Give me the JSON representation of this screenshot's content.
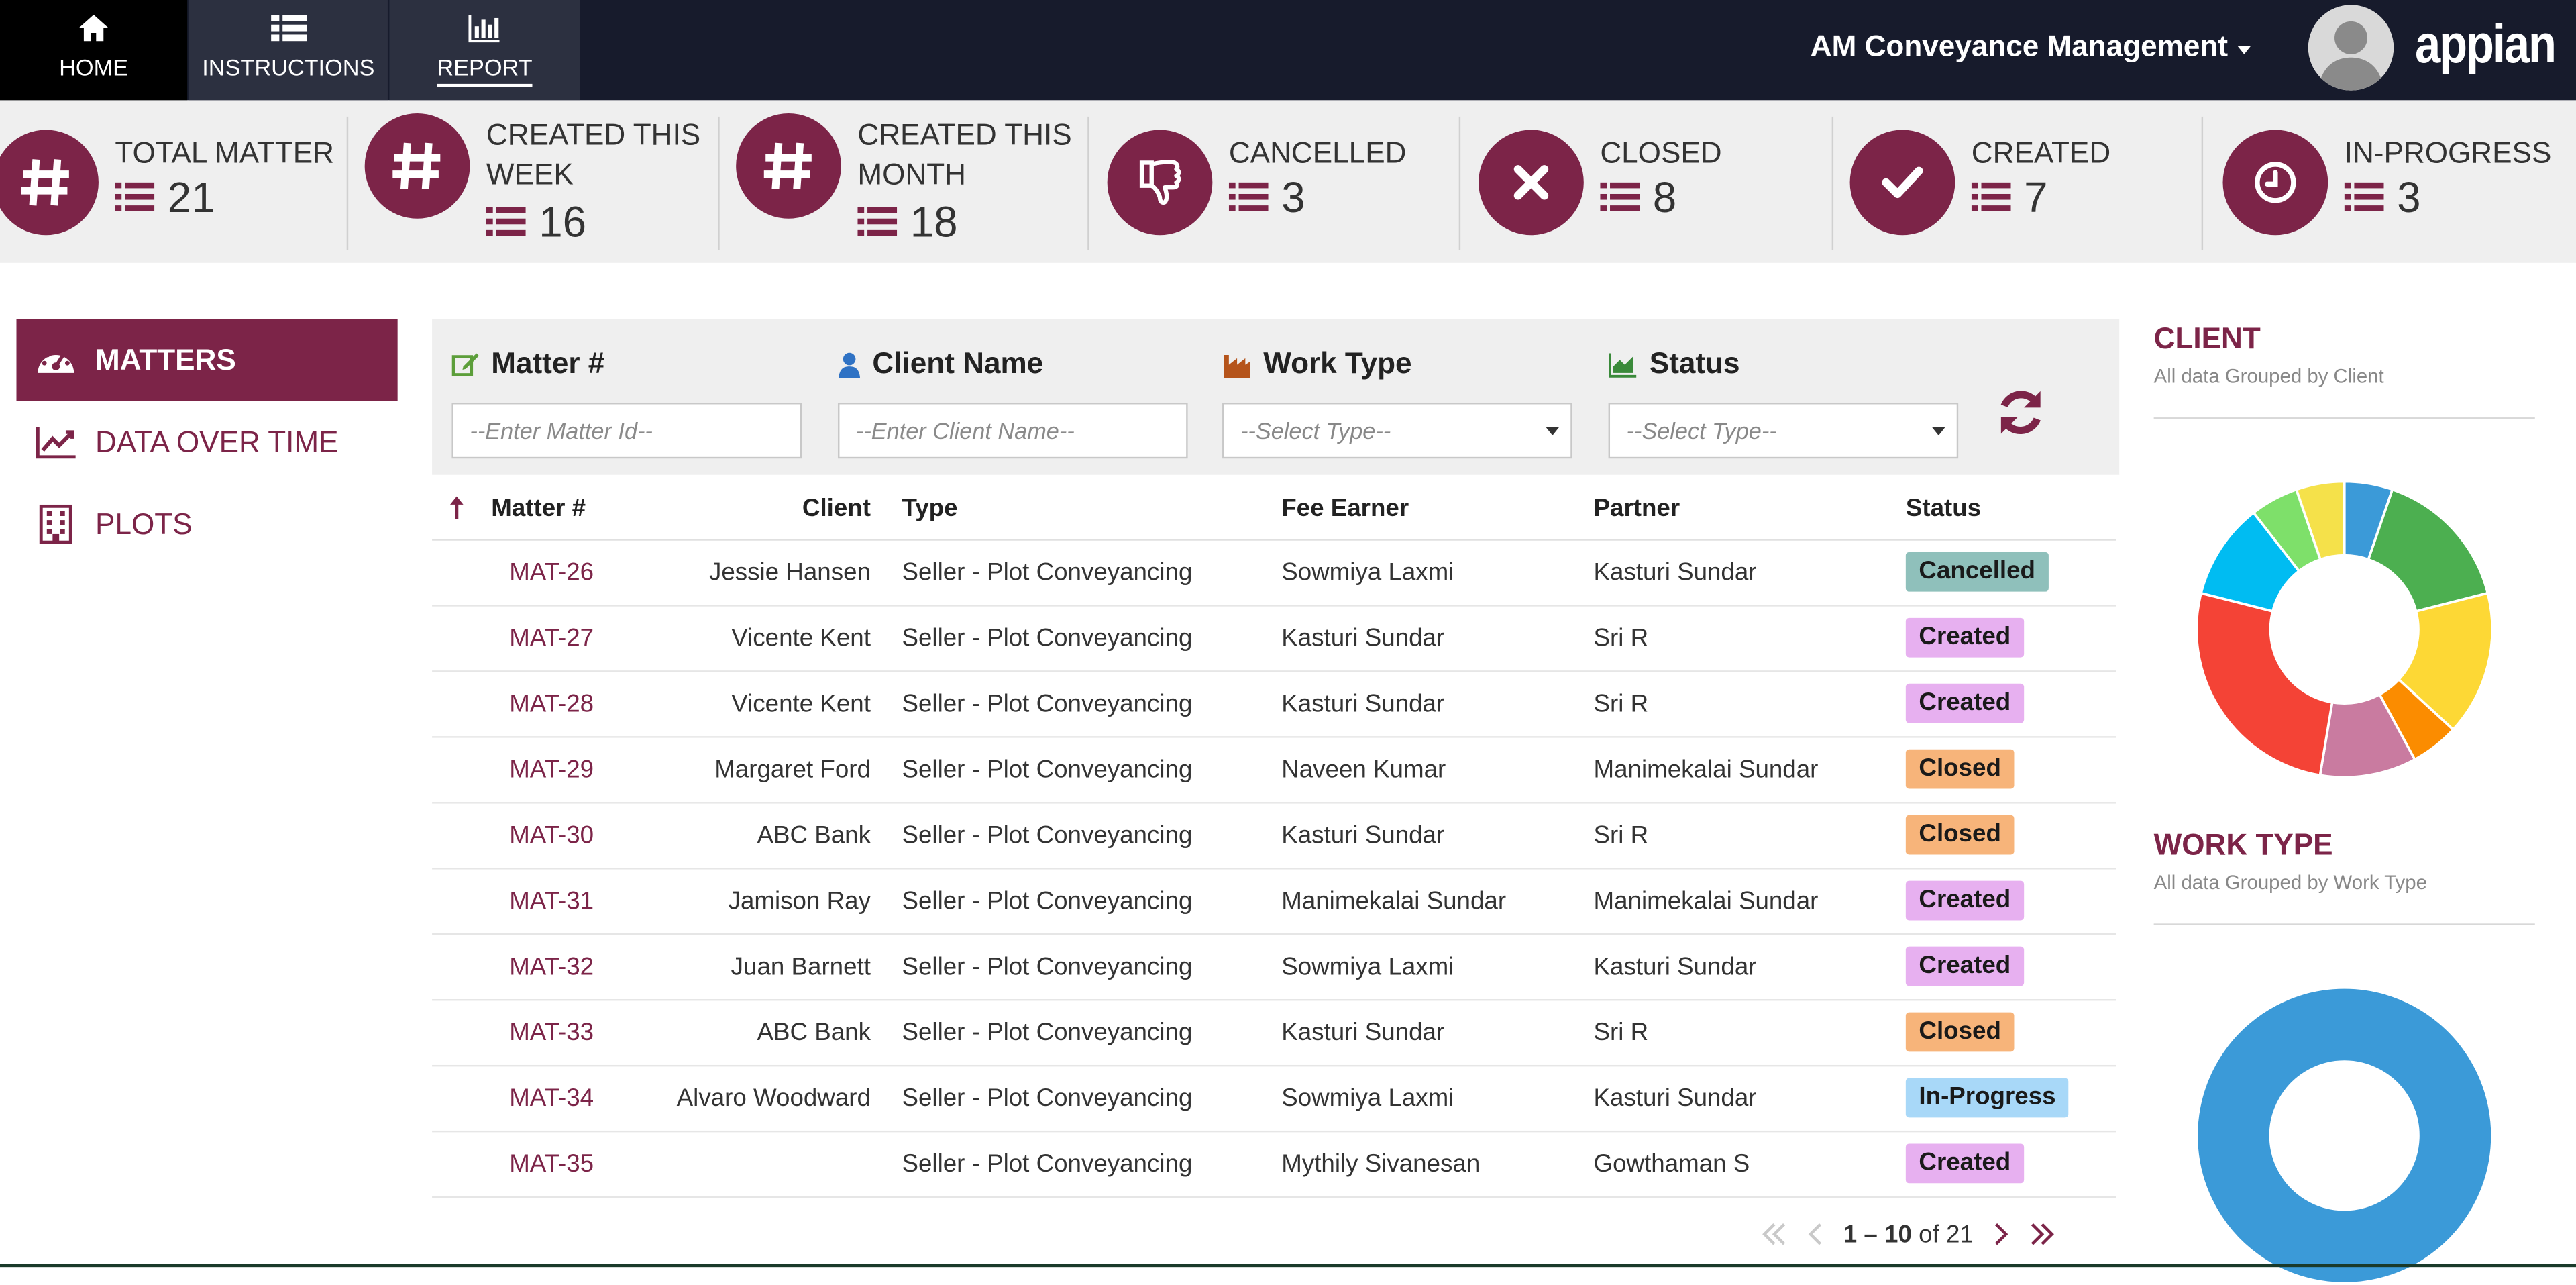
{
  "nav": {
    "home": "HOME",
    "instructions": "INSTRUCTIONS",
    "report": "REPORT",
    "app_name": "AM Conveyance Management",
    "brand": "appian"
  },
  "kpis": [
    {
      "label": "TOTAL MATTER",
      "value": "21",
      "icon": "hash-icon"
    },
    {
      "label": "CREATED THIS WEEK",
      "value": "16",
      "icon": "hash-icon"
    },
    {
      "label": "CREATED THIS MONTH",
      "value": "18",
      "icon": "hash-icon"
    },
    {
      "label": "CANCELLED",
      "value": "3",
      "icon": "thumbs-down-icon"
    },
    {
      "label": "CLOSED",
      "value": "8",
      "icon": "close-icon"
    },
    {
      "label": "CREATED",
      "value": "7",
      "icon": "checkmark-icon"
    },
    {
      "label": "IN-PROGRESS",
      "value": "3",
      "icon": "clock-icon"
    }
  ],
  "sidebar": {
    "items": [
      {
        "label": "MATTERS",
        "icon": "dashboard-icon",
        "active": true
      },
      {
        "label": "DATA OVER TIME",
        "icon": "line-chart-icon",
        "active": false
      },
      {
        "label": "PLOTS",
        "icon": "building-icon",
        "active": false
      }
    ]
  },
  "filters": {
    "matter": {
      "label": "Matter #",
      "placeholder": "--Enter Matter Id--"
    },
    "client": {
      "label": "Client Name",
      "placeholder": "--Enter Client Name--"
    },
    "work_type": {
      "label": "Work Type",
      "placeholder": "--Select Type--"
    },
    "status": {
      "label": "Status",
      "placeholder": "--Select Type--"
    }
  },
  "table": {
    "headers": {
      "matter": "Matter #",
      "client": "Client",
      "type": "Type",
      "fee_earner": "Fee Earner",
      "partner": "Partner",
      "status": "Status"
    },
    "rows": [
      {
        "matter": "MAT-26",
        "client": "Jessie Hansen",
        "type": "Seller - Plot Conveyancing",
        "fee_earner": "Sowmiya Laxmi",
        "partner": "Kasturi Sundar",
        "status": "Cancelled"
      },
      {
        "matter": "MAT-27",
        "client": "Vicente Kent",
        "type": "Seller - Plot Conveyancing",
        "fee_earner": "Kasturi Sundar",
        "partner": "Sri R",
        "status": "Created"
      },
      {
        "matter": "MAT-28",
        "client": "Vicente Kent",
        "type": "Seller - Plot Conveyancing",
        "fee_earner": "Kasturi Sundar",
        "partner": "Sri R",
        "status": "Created"
      },
      {
        "matter": "MAT-29",
        "client": "Margaret Ford",
        "type": "Seller - Plot Conveyancing",
        "fee_earner": "Naveen Kumar",
        "partner": "Manimekalai Sundar",
        "status": "Closed"
      },
      {
        "matter": "MAT-30",
        "client": "ABC Bank",
        "type": "Seller - Plot Conveyancing",
        "fee_earner": "Kasturi Sundar",
        "partner": "Sri R",
        "status": "Closed"
      },
      {
        "matter": "MAT-31",
        "client": "Jamison Ray",
        "type": "Seller - Plot Conveyancing",
        "fee_earner": "Manimekalai Sundar",
        "partner": "Manimekalai Sundar",
        "status": "Created"
      },
      {
        "matter": "MAT-32",
        "client": "Juan Barnett",
        "type": "Seller - Plot Conveyancing",
        "fee_earner": "Sowmiya Laxmi",
        "partner": "Kasturi Sundar",
        "status": "Created"
      },
      {
        "matter": "MAT-33",
        "client": "ABC Bank",
        "type": "Seller - Plot Conveyancing",
        "fee_earner": "Kasturi Sundar",
        "partner": "Sri R",
        "status": "Closed"
      },
      {
        "matter": "MAT-34",
        "client": "Alvaro Woodward",
        "type": "Seller - Plot Conveyancing",
        "fee_earner": "Sowmiya Laxmi",
        "partner": "Kasturi Sundar",
        "status": "In-Progress"
      },
      {
        "matter": "MAT-35",
        "client": "",
        "type": "Seller - Plot Conveyancing",
        "fee_earner": "Mythily Sivanesan",
        "partner": "Gowthaman S",
        "status": "Created"
      }
    ]
  },
  "status_colors": {
    "Cancelled": "#8fc0bb",
    "Created": "#e7b0f0",
    "Closed": "#f7b47a",
    "In-Progress": "#a8d8f8"
  },
  "pagination": {
    "range": "1 – 10",
    "of_text": "of 21"
  },
  "charts": {
    "client": {
      "title": "CLIENT",
      "subtitle": "All data Grouped by Client"
    },
    "work_type": {
      "title": "WORK TYPE",
      "subtitle": "All data Grouped by Work Type"
    }
  },
  "chart_data": [
    {
      "type": "pie",
      "title": "CLIENT",
      "subtitle": "All data Grouped by Client",
      "values": [
        1,
        3,
        3,
        1,
        2,
        5,
        2,
        1,
        1
      ],
      "colors": [
        "#3b9ad8",
        "#4caf50",
        "#fdd835",
        "#fb8c00",
        "#c97ba0",
        "#f44336",
        "#00bcf2",
        "#7ee06a",
        "#f5e14a"
      ]
    },
    {
      "type": "pie",
      "title": "WORK TYPE",
      "subtitle": "All data Grouped by Work Type",
      "values": [
        21
      ],
      "colors": [
        "#3b9ad8"
      ]
    }
  ],
  "colors": {
    "accent": "#7c2448",
    "topbar": "#171b2c",
    "kpi_bg": "#efefef"
  }
}
